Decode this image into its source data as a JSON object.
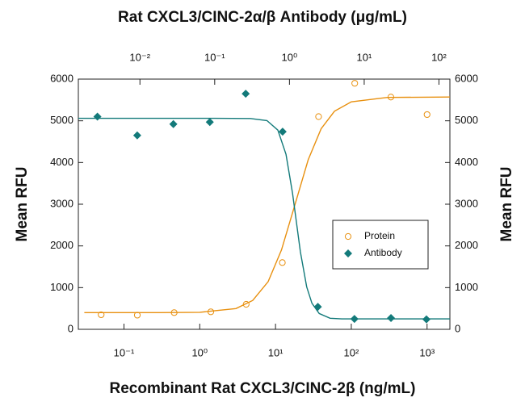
{
  "chart_data": {
    "type": "scatter",
    "title": "Rat CXCL3/CINC-2α/β Antibody (μg/mL)",
    "x_label": "Recombinant Rat CXCL3/CINC-2β (ng/mL)",
    "y_label": "Mean RFU",
    "y2_label": "Mean RFU",
    "xscale": "log",
    "xlim": [
      0.025,
      2000
    ],
    "xticks": [
      {
        "value": 0.1,
        "label": "10⁻¹"
      },
      {
        "value": 1,
        "label": "10⁰"
      },
      {
        "value": 10,
        "label": "10¹"
      },
      {
        "value": 100,
        "label": "10²"
      },
      {
        "value": 1000,
        "label": "10³"
      }
    ],
    "x2lim": [
      0.0015,
      140
    ],
    "x2ticks": [
      {
        "value": 0.01,
        "label": "10⁻²"
      },
      {
        "value": 0.1,
        "label": "10⁻¹"
      },
      {
        "value": 1,
        "label": "10⁰"
      },
      {
        "value": 10,
        "label": "10¹"
      },
      {
        "value": 100,
        "label": "10²"
      }
    ],
    "ylim": [
      0,
      6000
    ],
    "yticks": [
      0,
      1000,
      2000,
      3000,
      4000,
      5000,
      6000
    ],
    "y2lim": [
      0,
      6000
    ],
    "y2ticks": [
      0,
      1000,
      2000,
      3000,
      4000,
      5000,
      6000
    ],
    "legend": "center-right",
    "series": [
      {
        "name": "Protein",
        "color": "#e8900f",
        "marker": "circle",
        "axis": "x",
        "x": [
          0.05,
          0.15,
          0.46,
          1.4,
          4.1,
          12.3,
          37,
          111,
          333,
          1000
        ],
        "values": [
          350,
          340,
          400,
          420,
          600,
          1600,
          5100,
          5900,
          5570,
          5150
        ],
        "fit": {
          "x": [
            0.03,
            0.3,
            1,
            3,
            5,
            8,
            12,
            18,
            27,
            40,
            60,
            100,
            300,
            2000
          ],
          "values": [
            400,
            400,
            409,
            498,
            692,
            1144,
            1903,
            2985,
            4067,
            4809,
            5229,
            5454,
            5560,
            5570
          ]
        }
      },
      {
        "name": "Antibody",
        "color": "#137a7a",
        "marker": "diamond",
        "axis": "x2",
        "x": [
          0.0027,
          0.0092,
          0.028,
          0.086,
          0.26,
          0.81,
          2.4,
          7.4,
          22.8,
          68
        ],
        "values": [
          5100,
          4650,
          4920,
          4970,
          5650,
          4740,
          540,
          250,
          270,
          240
        ],
        "fit": {
          "x": [
            0.0015,
            0.1,
            0.3,
            0.5,
            0.7,
            0.9,
            1.1,
            1.22,
            1.4,
            1.7,
            2,
            2.5,
            3.5,
            5,
            140
          ],
          "values": [
            5060,
            5060,
            5055,
            5005,
            4777,
            4197,
            3262,
            2655,
            1859,
            1020,
            626,
            380,
            265,
            250,
            250
          ]
        }
      }
    ]
  }
}
